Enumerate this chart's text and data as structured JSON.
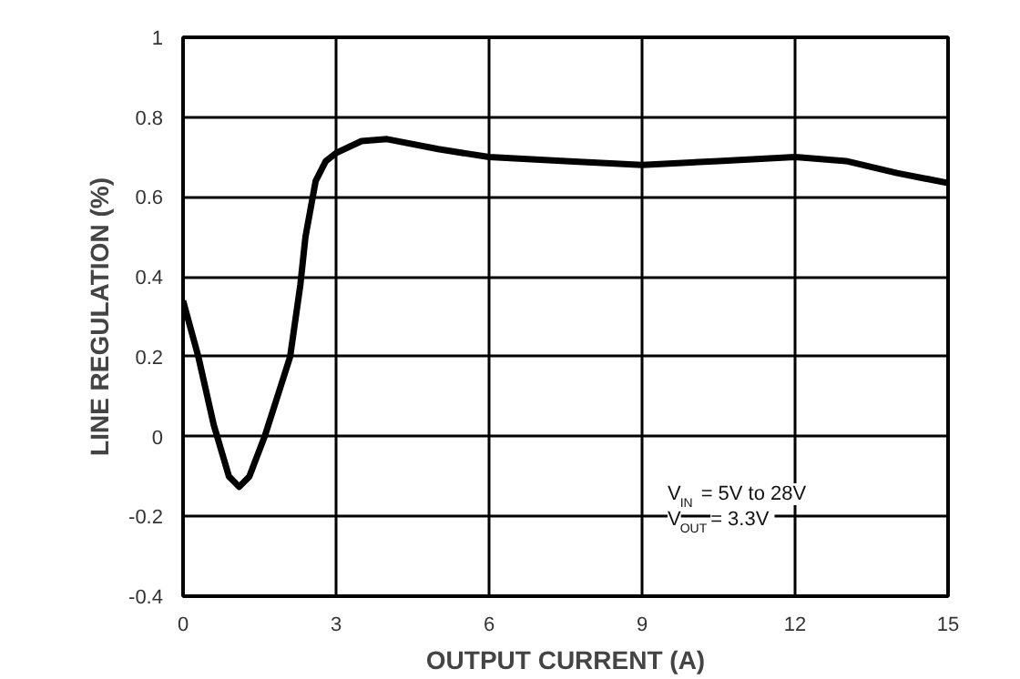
{
  "chart_data": {
    "type": "line",
    "xlabel": "OUTPUT CURRENT (A)",
    "ylabel": "LINE REGULATION (%)",
    "x": [
      0,
      0.3,
      0.6,
      0.9,
      1.1,
      1.3,
      1.6,
      1.9,
      2.1,
      2.3,
      2.4,
      2.6,
      2.8,
      3,
      3.5,
      4,
      5,
      6,
      7.5,
      9,
      10.5,
      12,
      13,
      14,
      15
    ],
    "series": [
      {
        "color": "#000000",
        "values": [
          0.34,
          0.2,
          0.03,
          -0.1,
          -0.126,
          -0.1,
          0.0,
          0.12,
          0.2,
          0.38,
          0.5,
          0.64,
          0.69,
          0.71,
          0.74,
          0.745,
          0.72,
          0.7,
          0.69,
          0.68,
          0.69,
          0.7,
          0.69,
          0.66,
          0.635
        ]
      }
    ],
    "xlim": [
      0,
      15
    ],
    "ylim": [
      -0.4,
      1
    ],
    "xticks": [
      0,
      3,
      6,
      9,
      12,
      15
    ],
    "yticks": [
      -0.4,
      -0.2,
      0,
      0.2,
      0.4,
      0.6,
      0.8,
      1
    ],
    "grid": true,
    "marker": "none",
    "line_style": "solid",
    "annotations": [
      "V$_{IN}$ = 5V to 28V",
      "V$_{OUT}$ = 3.3V"
    ]
  }
}
